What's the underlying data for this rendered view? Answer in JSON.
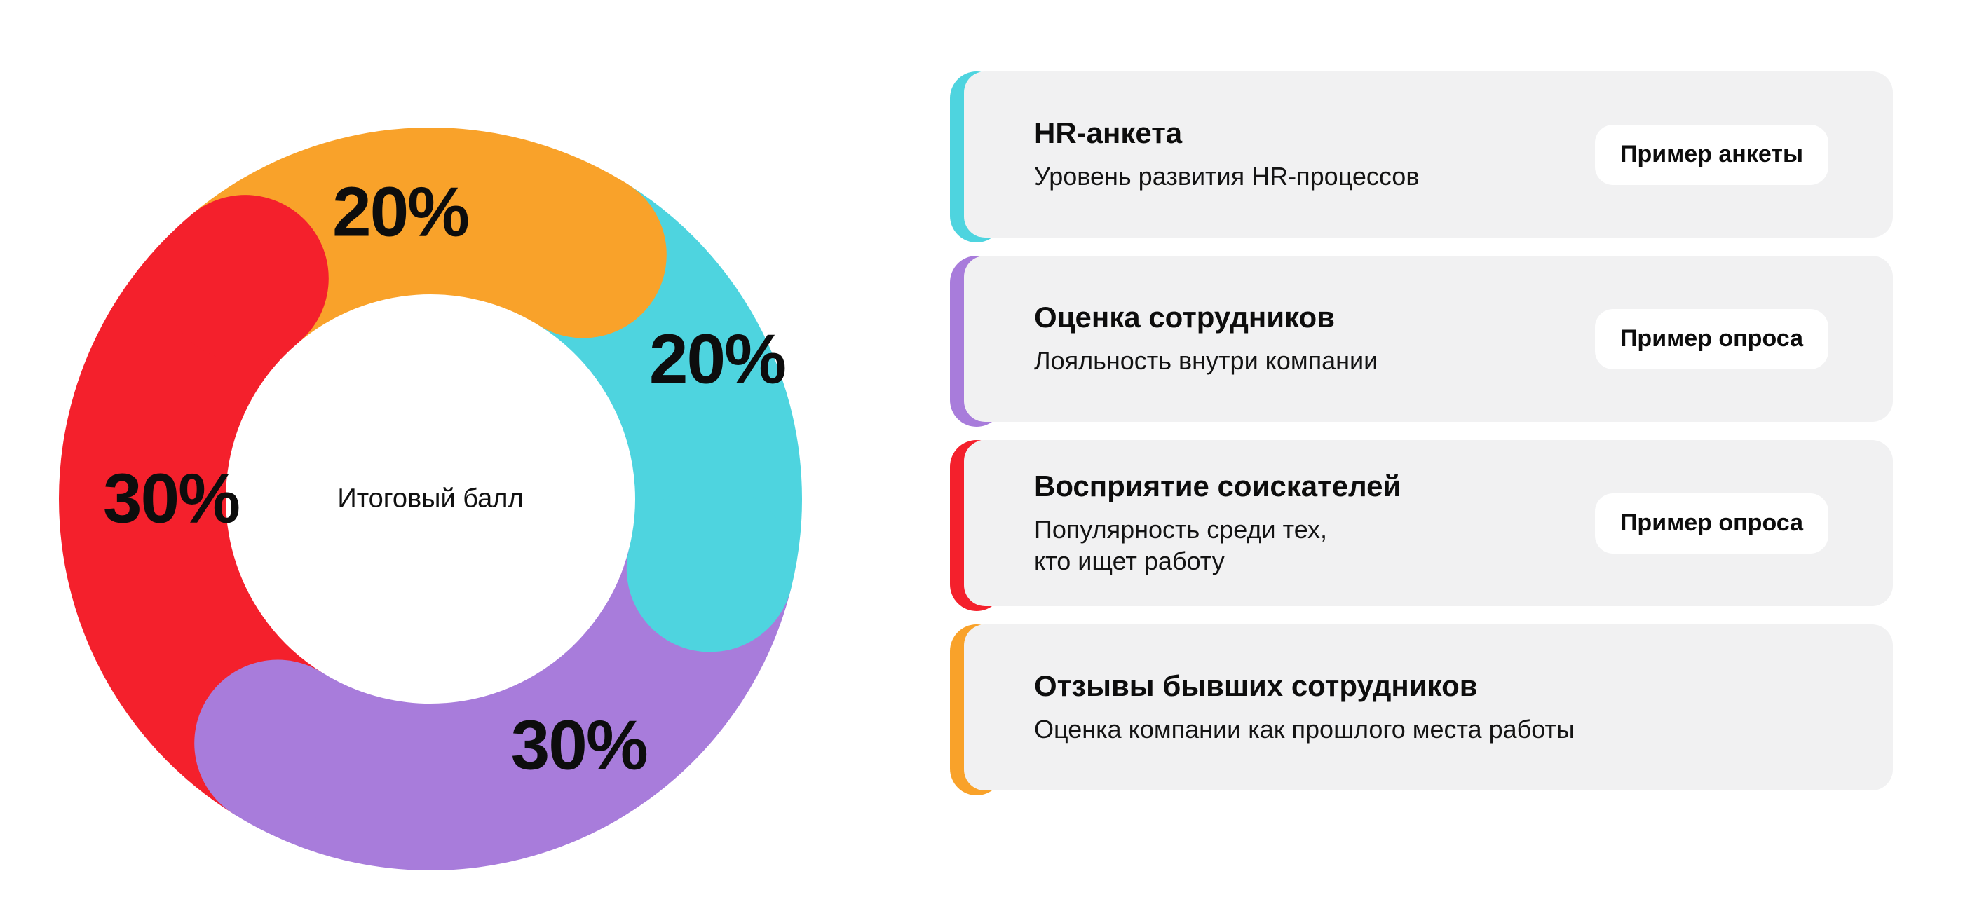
{
  "chart_data": {
    "type": "pie",
    "variant": "donut",
    "center_label": "Итоговый балл",
    "rotation_deg": -40,
    "legend_position": "right",
    "segments": [
      {
        "label": "20%",
        "value": 20,
        "color": "#F9A22A",
        "category": "Отзывы бывших сотрудников"
      },
      {
        "label": "20%",
        "value": 20,
        "color": "#4ED4DF",
        "category": "HR-анкета"
      },
      {
        "label": "30%",
        "value": 30,
        "color": "#A87CDB",
        "category": "Оценка сотрудников"
      },
      {
        "label": "30%",
        "value": 30,
        "color": "#F4202C",
        "category": "Восприятие соискателей"
      }
    ]
  },
  "cards": [
    {
      "accent": "#4ED4DF",
      "title": "HR-анкета",
      "subtitle": "Уровень развития HR-процессов",
      "button": "Пример анкеты"
    },
    {
      "accent": "#A87CDB",
      "title": "Оценка сотрудников",
      "subtitle": "Лояльность внутри компании",
      "button": "Пример опроса"
    },
    {
      "accent": "#F4202C",
      "title": "Восприятие соискателей",
      "subtitle": "Популярность среди тех,\nкто ищет работу",
      "button": "Пример опроса"
    },
    {
      "accent": "#F9A22A",
      "title": "Отзывы бывших сотрудников",
      "subtitle": "Оценка компании как прошлого места работы"
    }
  ]
}
